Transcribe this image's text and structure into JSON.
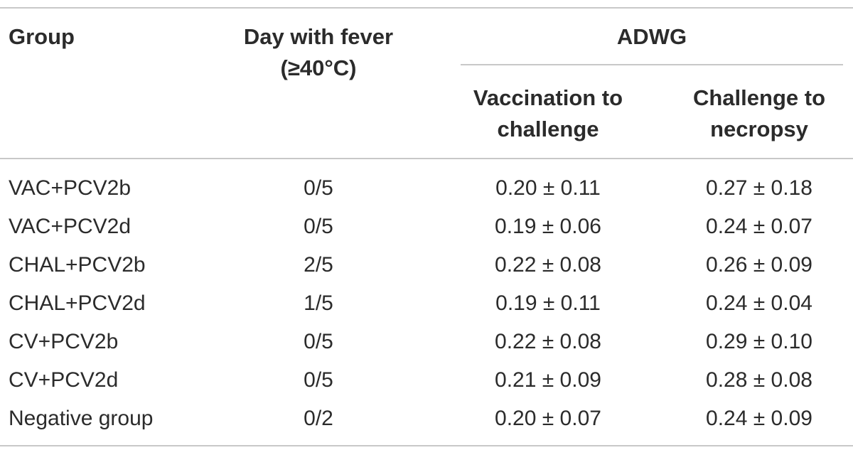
{
  "table": {
    "headers": {
      "group": "Group",
      "fever_line1": "Day with fever",
      "fever_line2": "(≥40°C)",
      "adwg": "ADWG",
      "vac_line1": "Vaccination to",
      "vac_line2": "challenge",
      "chal_line1": "Challenge to",
      "chal_line2": "necropsy"
    },
    "rows": [
      {
        "group": "VAC+PCV2b",
        "fever": "0/5",
        "vac_to_challenge": "0.20 ± 0.11",
        "challenge_to_necropsy": "0.27 ± 0.18"
      },
      {
        "group": "VAC+PCV2d",
        "fever": "0/5",
        "vac_to_challenge": "0.19 ± 0.06",
        "challenge_to_necropsy": "0.24 ± 0.07"
      },
      {
        "group": "CHAL+PCV2b",
        "fever": "2/5",
        "vac_to_challenge": "0.22 ± 0.08",
        "challenge_to_necropsy": "0.26 ± 0.09"
      },
      {
        "group": "CHAL+PCV2d",
        "fever": "1/5",
        "vac_to_challenge": "0.19 ± 0.11",
        "challenge_to_necropsy": "0.24 ± 0.04"
      },
      {
        "group": "CV+PCV2b",
        "fever": "0/5",
        "vac_to_challenge": "0.22 ± 0.08",
        "challenge_to_necropsy": "0.29 ± 0.10"
      },
      {
        "group": "CV+PCV2d",
        "fever": "0/5",
        "vac_to_challenge": "0.21 ± 0.09",
        "challenge_to_necropsy": "0.28 ± 0.08"
      },
      {
        "group": "Negative group",
        "fever": "0/2",
        "vac_to_challenge": "0.20 ± 0.07",
        "challenge_to_necropsy": "0.24 ± 0.09"
      }
    ]
  }
}
